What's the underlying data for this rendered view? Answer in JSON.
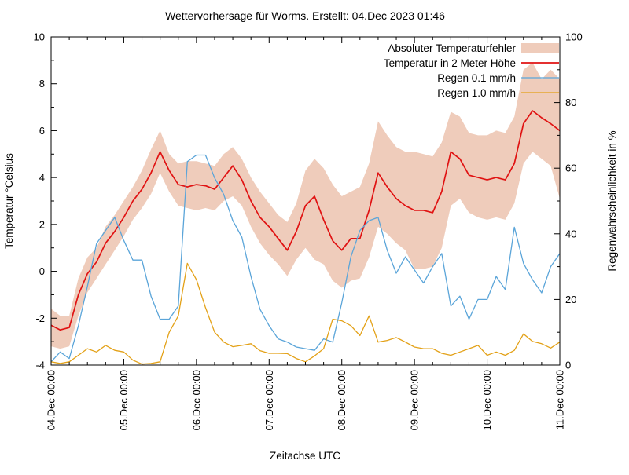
{
  "chart_data": {
    "type": "line",
    "title": "Wettervorhersage für Worms. Erstellt: 04.Dec 2023 01:46",
    "xlabel": "Zeitachse UTC",
    "x_axis": {
      "total_hours": 168,
      "major_tick_hours": 24,
      "minor_tick_hours": 6,
      "tick_labels": [
        "04.Dec 00:00",
        "05.Dec 00:00",
        "06.Dec 00:00",
        "07.Dec 00:00",
        "08.Dec 00:00",
        "09.Dec 00:00",
        "10.Dec 00:00",
        "11.Dec 00:00"
      ]
    },
    "y_axis_left": {
      "label": "Temperatur °Celsius",
      "min": -4,
      "max": 10,
      "tick_step": 2,
      "minor_step": 1,
      "tick_labels": [
        "-4",
        "-2",
        "0",
        "2",
        "4",
        "6",
        "8",
        "10"
      ]
    },
    "y_axis_right": {
      "label": "Regenwahrscheinlichkeit in %",
      "min": 0,
      "max": 100,
      "tick_step": 20,
      "minor_step": 10,
      "tick_labels": [
        "0",
        "20",
        "40",
        "60",
        "80",
        "100"
      ]
    },
    "grid": "off",
    "legend_position": "top-right-inside",
    "sample_interval_hours": 3,
    "series": [
      {
        "name": "Absoluter Temperaturfehler",
        "type": "band",
        "axis": "left",
        "color": "#efccbb",
        "upper": [
          -1.6,
          -1.9,
          -1.9,
          -0.3,
          0.6,
          1.0,
          1.9,
          2.4,
          3.0,
          3.6,
          4.3,
          5.2,
          6.0,
          5.0,
          4.6,
          4.7,
          4.7,
          4.6,
          4.5,
          5.0,
          5.3,
          4.8,
          4.0,
          3.4,
          2.9,
          2.4,
          2.1,
          2.9,
          4.3,
          4.8,
          4.4,
          3.7,
          3.2,
          3.4,
          3.6,
          4.6,
          6.4,
          5.8,
          5.3,
          5.1,
          5.1,
          5.0,
          4.9,
          5.5,
          6.8,
          6.6,
          5.9,
          5.8,
          5.8,
          6.0,
          5.9,
          6.6,
          8.6,
          8.9,
          8.2,
          8.6,
          8.2
        ],
        "lower": [
          -3.2,
          -3.3,
          -3.2,
          -1.9,
          -0.9,
          -0.3,
          0.3,
          0.9,
          1.5,
          2.2,
          2.7,
          3.3,
          4.2,
          3.4,
          2.8,
          2.7,
          2.6,
          2.7,
          2.6,
          3.0,
          3.2,
          2.8,
          1.9,
          1.2,
          0.7,
          0.3,
          -0.2,
          0.5,
          1.0,
          0.5,
          0.3,
          -0.4,
          -0.7,
          -0.4,
          -0.3,
          0.6,
          1.9,
          1.6,
          1.2,
          0.9,
          0.1,
          0.1,
          0.2,
          1.0,
          2.8,
          3.1,
          2.5,
          2.3,
          2.2,
          2.3,
          2.2,
          2.9,
          4.6,
          5.1,
          4.8,
          4.5,
          3.1
        ]
      },
      {
        "name": "Temperatur in 2 Meter Höhe",
        "type": "line",
        "axis": "left",
        "color": "#e01212",
        "values": [
          -2.3,
          -2.5,
          -2.4,
          -1.0,
          -0.1,
          0.4,
          1.2,
          1.7,
          2.3,
          3.0,
          3.5,
          4.2,
          5.1,
          4.3,
          3.7,
          3.6,
          3.7,
          3.65,
          3.5,
          4.0,
          4.5,
          3.9,
          3.0,
          2.3,
          1.9,
          1.4,
          0.9,
          1.7,
          2.8,
          3.2,
          2.2,
          1.3,
          0.9,
          1.4,
          1.4,
          2.6,
          4.2,
          3.6,
          3.1,
          2.8,
          2.6,
          2.6,
          2.5,
          3.4,
          5.1,
          4.8,
          4.1,
          4.0,
          3.9,
          4.0,
          3.9,
          4.6,
          6.3,
          6.85,
          6.55,
          6.3,
          6.0
        ]
      },
      {
        "name": "Regen 0.1 mm/h",
        "type": "line",
        "axis": "right",
        "color": "#5ba5d9",
        "values": [
          1,
          4,
          2,
          12,
          24,
          37,
          41,
          45,
          38,
          32,
          32,
          21,
          14,
          14,
          18,
          62,
          64,
          64,
          57,
          52,
          44,
          39,
          27,
          17,
          12,
          8,
          7,
          5.5,
          5,
          4.5,
          8,
          7,
          19,
          33,
          41,
          44,
          45,
          35,
          28,
          33,
          29,
          25,
          30,
          34,
          18,
          21,
          14,
          20,
          20,
          27,
          23,
          42,
          31,
          26,
          22,
          30,
          34
        ]
      },
      {
        "name": "Regen 1.0 mm/h",
        "type": "line",
        "axis": "right",
        "color": "#e3a117",
        "values": [
          1,
          0.5,
          1,
          3,
          5,
          4,
          6,
          4.5,
          4,
          1.5,
          0.3,
          0.5,
          1,
          10,
          15,
          31,
          26,
          17.5,
          10,
          7,
          5.6,
          6,
          6.5,
          4.4,
          3.6,
          3.6,
          3.5,
          2,
          1,
          2.8,
          5,
          14,
          13.5,
          12,
          9,
          15,
          7,
          7.5,
          8.4,
          7,
          5.5,
          5,
          5,
          3.6,
          3,
          4,
          5,
          6,
          3,
          4,
          3,
          4.5,
          9.5,
          7.2,
          6.5,
          5.2,
          7
        ]
      }
    ]
  }
}
